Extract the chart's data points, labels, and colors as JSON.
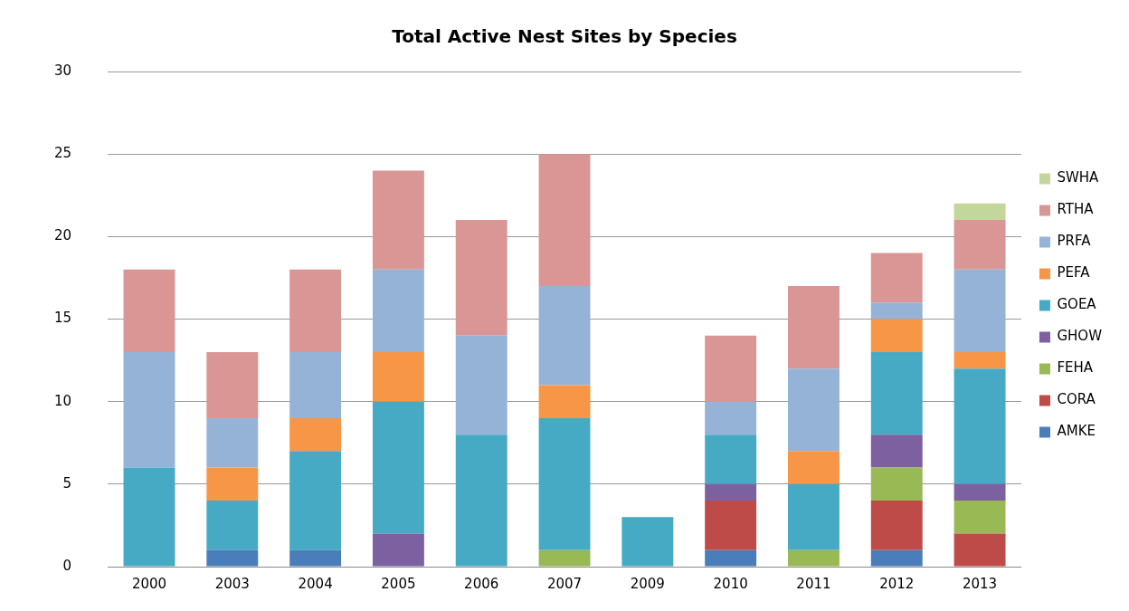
{
  "chart_data": {
    "type": "bar",
    "title": "Total Active Nest Sites by Species",
    "stacked": true,
    "legend": "right",
    "grid": "y",
    "ylim": [
      0,
      30
    ],
    "yticks": [
      0,
      5,
      10,
      15,
      20,
      25,
      30
    ],
    "categories": [
      "2000",
      "2003",
      "2004",
      "2005",
      "2006",
      "2007",
      "2009",
      "2010",
      "2011",
      "2012",
      "2013"
    ],
    "series": [
      {
        "name": "AMKE",
        "color": "#4a7ebb",
        "values": [
          0,
          1,
          1,
          0,
          0,
          0,
          0,
          1,
          0,
          1,
          0
        ]
      },
      {
        "name": "CORA",
        "color": "#be4b48",
        "values": [
          0,
          0,
          0,
          0,
          0,
          0,
          0,
          3,
          0,
          3,
          2
        ]
      },
      {
        "name": "FEHA",
        "color": "#98b954",
        "values": [
          0,
          0,
          0,
          0,
          0,
          1,
          0,
          0,
          1,
          2,
          2
        ]
      },
      {
        "name": "GHOW",
        "color": "#7d60a0",
        "values": [
          0,
          0,
          0,
          2,
          0,
          0,
          0,
          1,
          0,
          2,
          1
        ]
      },
      {
        "name": "GOEA",
        "color": "#46aac5",
        "values": [
          6,
          3,
          6,
          8,
          8,
          8,
          3,
          3,
          4,
          5,
          7
        ]
      },
      {
        "name": "PEFA",
        "color": "#f79646",
        "values": [
          0,
          2,
          2,
          3,
          0,
          2,
          0,
          0,
          2,
          2,
          1
        ]
      },
      {
        "name": "PRFA",
        "color": "#95b3d7",
        "values": [
          7,
          3,
          4,
          5,
          6,
          6,
          0,
          2,
          5,
          1,
          5
        ]
      },
      {
        "name": "RTHA",
        "color": "#d99694",
        "values": [
          5,
          4,
          5,
          6,
          7,
          8,
          0,
          4,
          5,
          3,
          3
        ]
      },
      {
        "name": "SWHA",
        "color": "#c3d69b",
        "values": [
          0,
          0,
          0,
          0,
          0,
          0,
          0,
          0,
          0,
          0,
          1
        ]
      }
    ]
  }
}
